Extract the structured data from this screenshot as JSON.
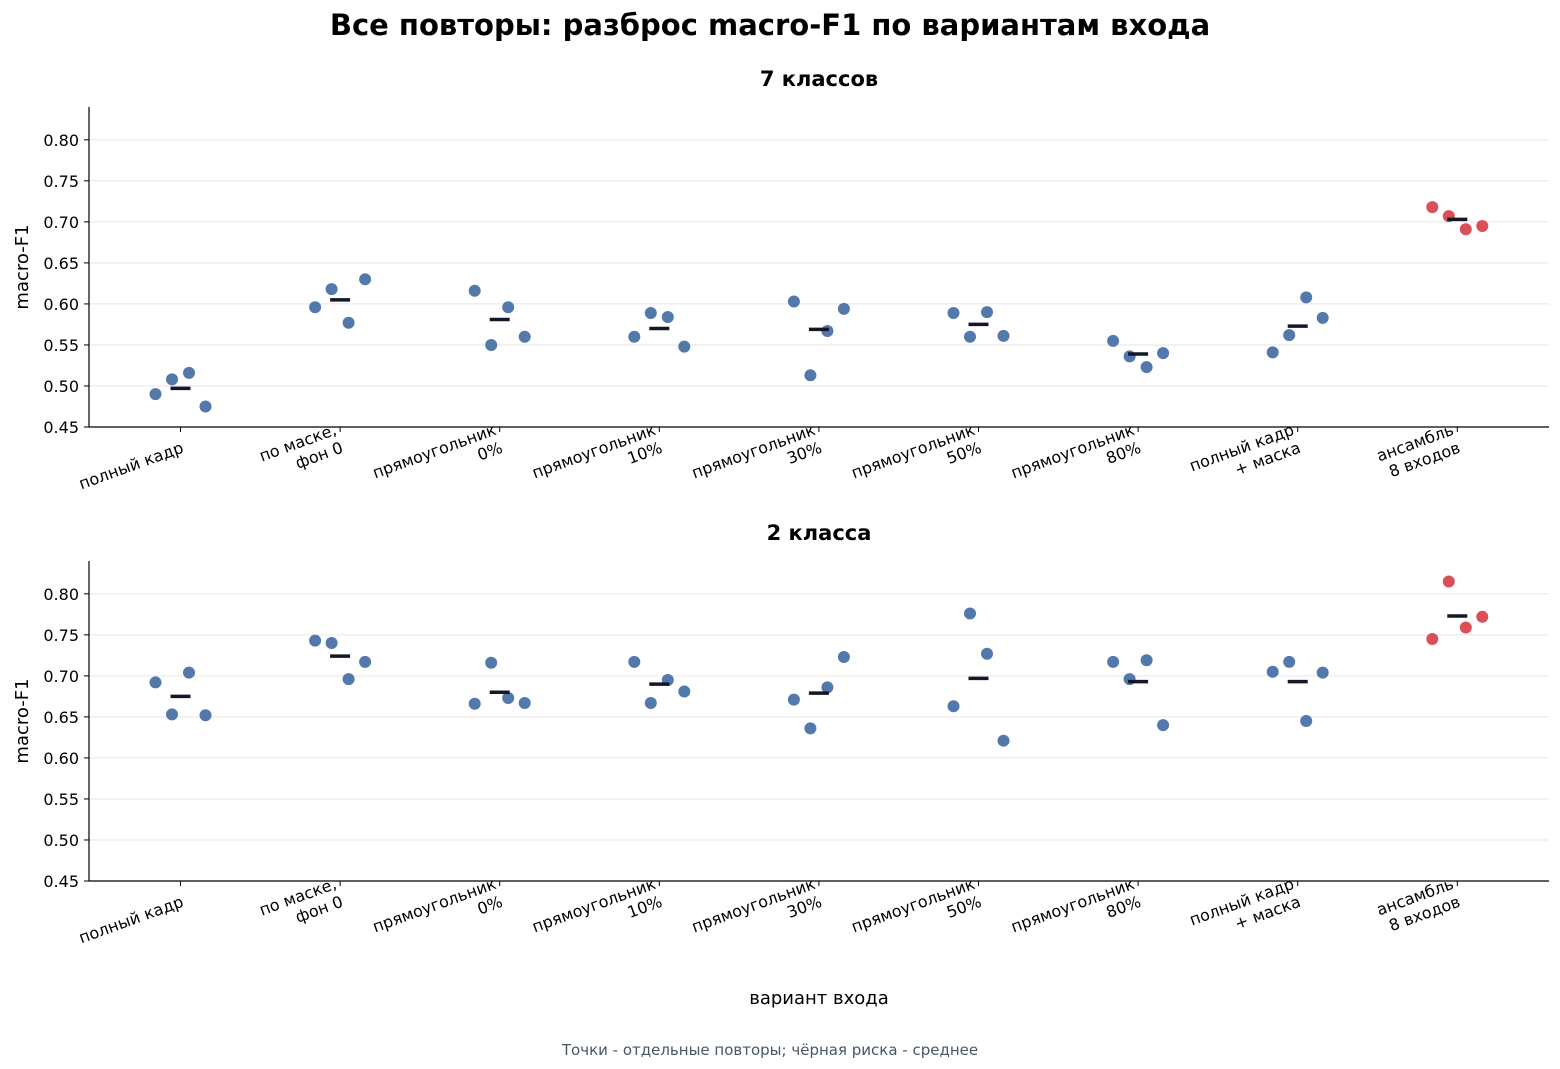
{
  "title": "Все повторы: разброс macro-F1 по вариантам входа",
  "caption": "Точки - отдельные повторы; чёрная риска - среднее",
  "colors": {
    "normal": "#4a72a8",
    "ensemble": "#d9474f",
    "mean": "#111827",
    "caption": "#4a5568"
  },
  "chart_data": [
    {
      "type": "scatter",
      "title": "7 классов",
      "ylabel": "macro-F1",
      "xlabel": "",
      "ylim": [
        0.45,
        0.84
      ],
      "yticks": [
        "0.45",
        "0.50",
        "0.55",
        "0.60",
        "0.65",
        "0.70",
        "0.75",
        "0.80"
      ],
      "grid": "y",
      "categories": [
        [
          "полный кадр"
        ],
        [
          "по маске,",
          "фон 0"
        ],
        [
          "прямоугольник",
          "0%"
        ],
        [
          "прямоугольник",
          "10%"
        ],
        [
          "прямоугольник",
          "30%"
        ],
        [
          "прямоугольник",
          "50%"
        ],
        [
          "прямоугольник",
          "80%"
        ],
        [
          "полный кадр",
          "+ маска"
        ],
        [
          "ансамбль",
          "8 входов"
        ]
      ],
      "highlighted_category": 8,
      "series": [
        {
          "points": [
            0.49,
            0.508,
            0.516,
            0.475
          ],
          "mean": 0.497
        },
        {
          "points": [
            0.596,
            0.618,
            0.577,
            0.63
          ],
          "mean": 0.605
        },
        {
          "points": [
            0.616,
            0.55,
            0.596,
            0.56
          ],
          "mean": 0.581
        },
        {
          "points": [
            0.56,
            0.589,
            0.584,
            0.548
          ],
          "mean": 0.57
        },
        {
          "points": [
            0.603,
            0.513,
            0.567,
            0.594
          ],
          "mean": 0.569
        },
        {
          "points": [
            0.589,
            0.56,
            0.59,
            0.561
          ],
          "mean": 0.575
        },
        {
          "points": [
            0.555,
            0.536,
            0.523,
            0.54
          ],
          "mean": 0.539
        },
        {
          "points": [
            0.541,
            0.562,
            0.608,
            0.583
          ],
          "mean": 0.573
        },
        {
          "points": [
            0.718,
            0.707,
            0.691,
            0.695
          ],
          "mean": 0.703
        }
      ]
    },
    {
      "type": "scatter",
      "title": "2 класса",
      "ylabel": "macro-F1",
      "xlabel": "вариант входа",
      "ylim": [
        0.45,
        0.84
      ],
      "yticks": [
        "0.45",
        "0.50",
        "0.55",
        "0.60",
        "0.65",
        "0.70",
        "0.75",
        "0.80"
      ],
      "grid": "y",
      "categories": [
        [
          "полный кадр"
        ],
        [
          "по маске,",
          "фон 0"
        ],
        [
          "прямоугольник",
          "0%"
        ],
        [
          "прямоугольник",
          "10%"
        ],
        [
          "прямоугольник",
          "30%"
        ],
        [
          "прямоугольник",
          "50%"
        ],
        [
          "прямоугольник",
          "80%"
        ],
        [
          "полный кадр",
          "+ маска"
        ],
        [
          "ансамбль",
          "8 входов"
        ]
      ],
      "highlighted_category": 8,
      "series": [
        {
          "points": [
            0.692,
            0.653,
            0.704,
            0.652
          ],
          "mean": 0.675
        },
        {
          "points": [
            0.743,
            0.74,
            0.696,
            0.717
          ],
          "mean": 0.724
        },
        {
          "points": [
            0.666,
            0.716,
            0.673,
            0.667
          ],
          "mean": 0.68
        },
        {
          "points": [
            0.717,
            0.667,
            0.695,
            0.681
          ],
          "mean": 0.69
        },
        {
          "points": [
            0.671,
            0.636,
            0.686,
            0.723
          ],
          "mean": 0.679
        },
        {
          "points": [
            0.663,
            0.776,
            0.727,
            0.621
          ],
          "mean": 0.697
        },
        {
          "points": [
            0.717,
            0.696,
            0.719,
            0.64
          ],
          "mean": 0.693
        },
        {
          "points": [
            0.705,
            0.717,
            0.645,
            0.704
          ],
          "mean": 0.693
        },
        {
          "points": [
            0.745,
            0.815,
            0.759,
            0.772
          ],
          "mean": 0.773
        }
      ]
    }
  ]
}
